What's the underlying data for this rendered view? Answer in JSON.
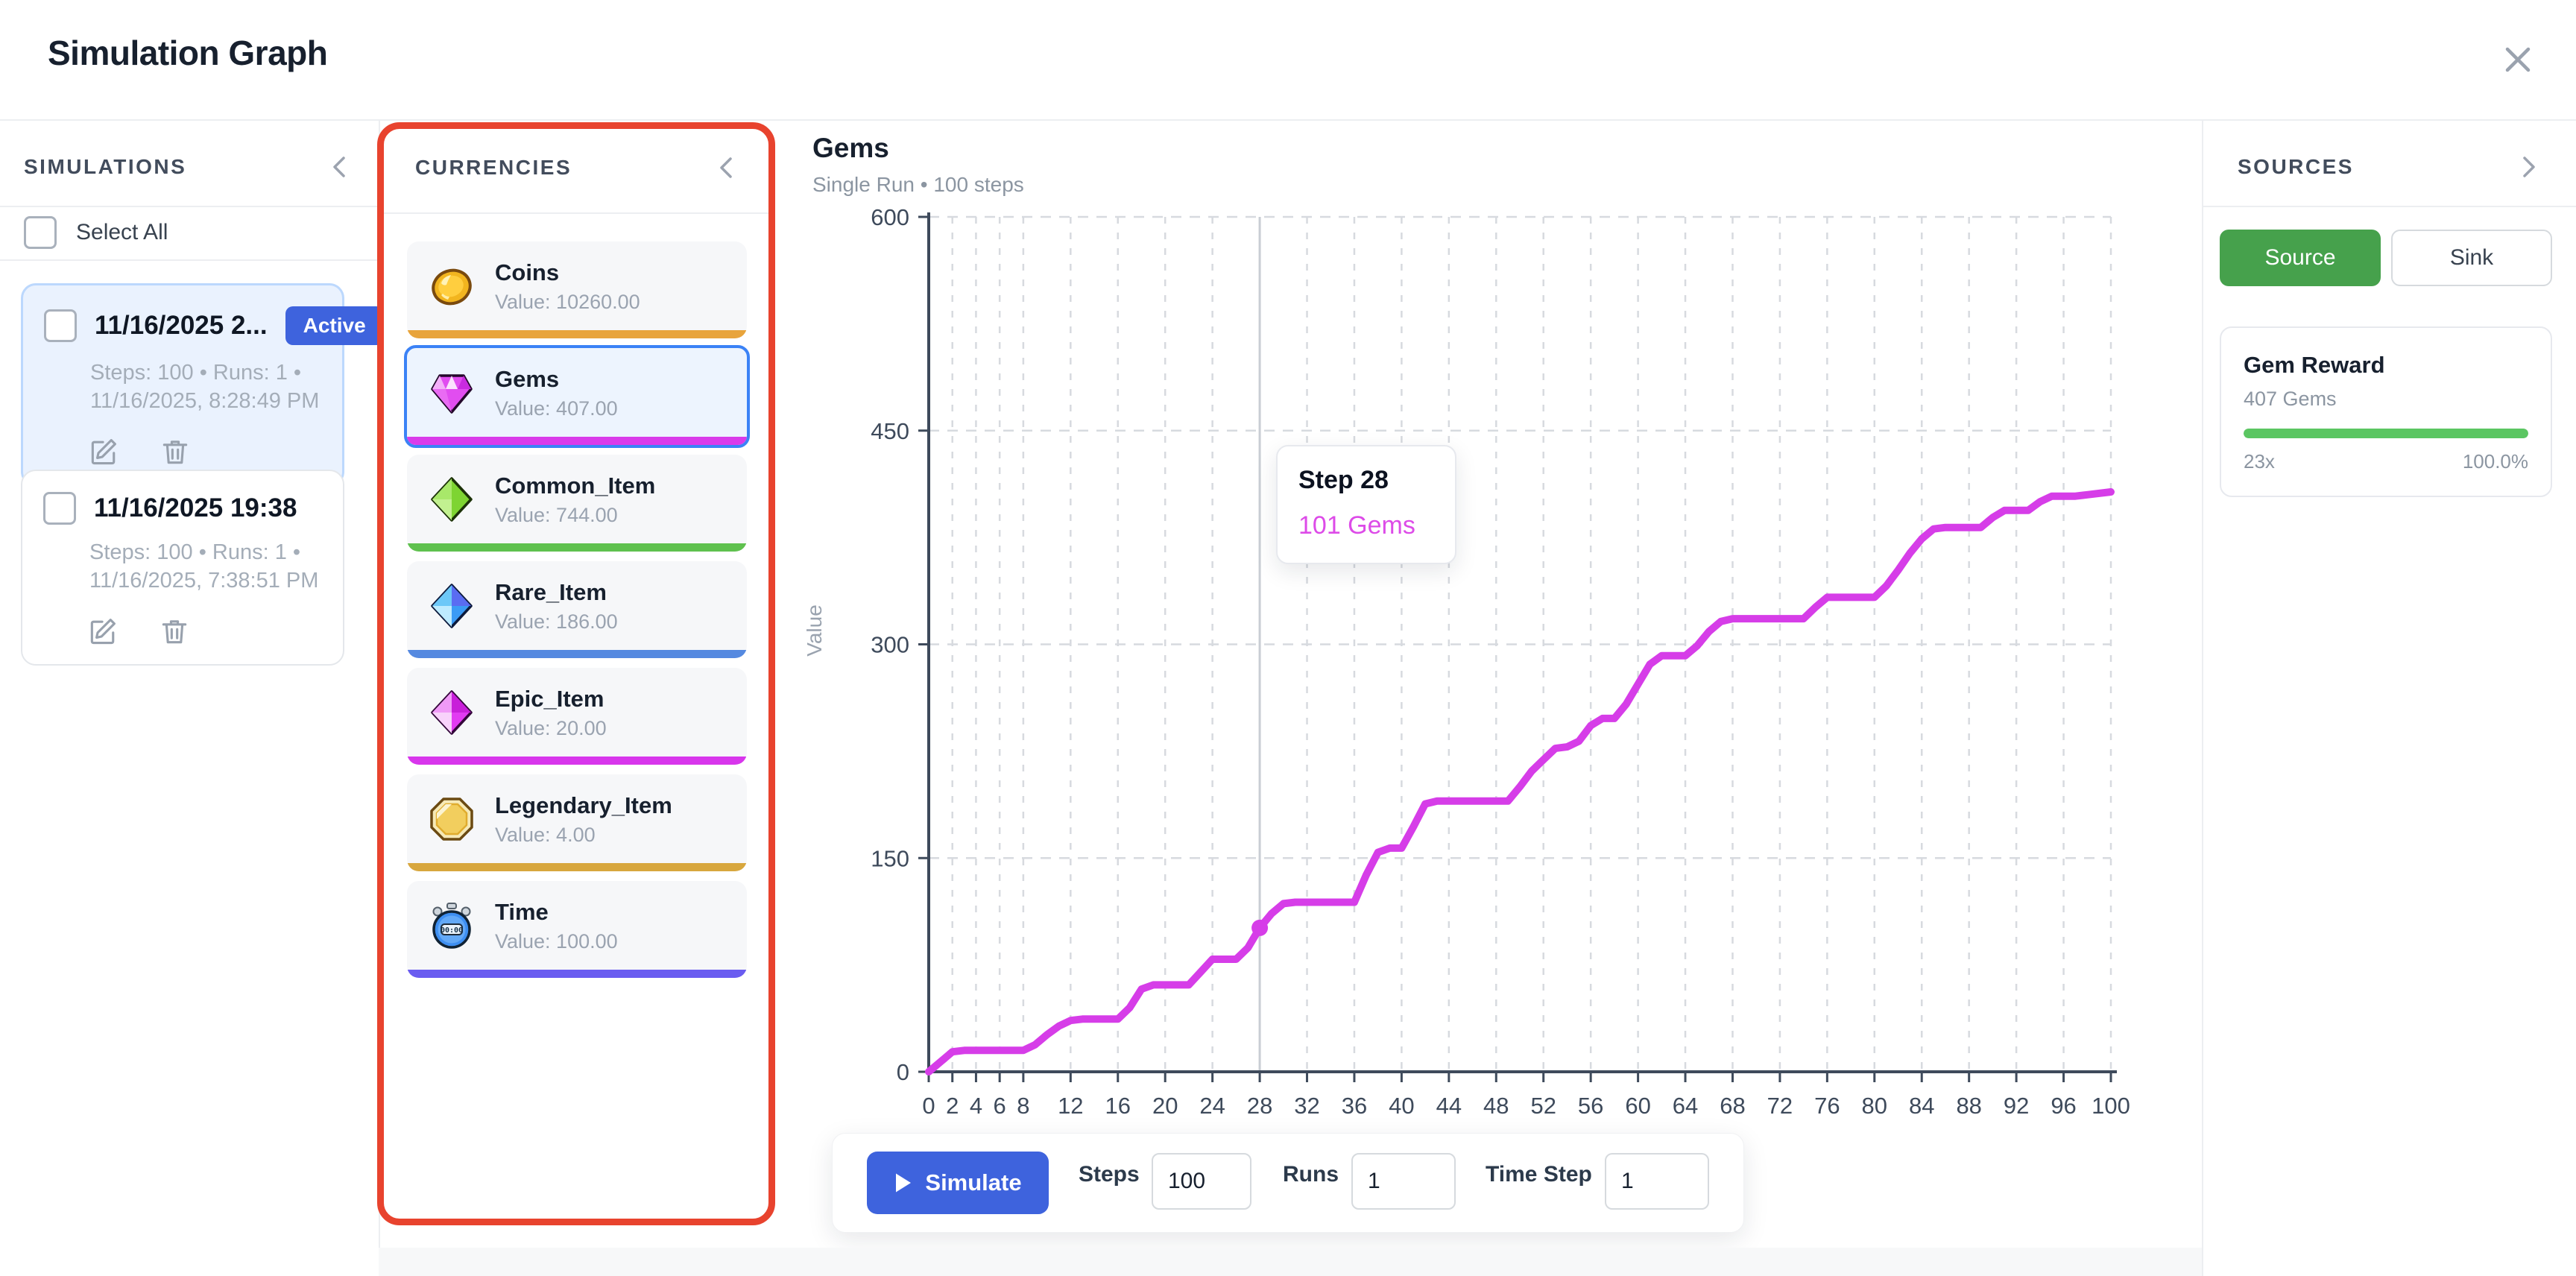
{
  "header": {
    "title": "Simulation Graph"
  },
  "simulations": {
    "title": "SIMULATIONS",
    "select_all_label": "Select All",
    "items": [
      {
        "title": "11/16/2025 2...",
        "badge": "Active",
        "meta1": "Steps: 100 • Runs: 1 •",
        "meta2": "11/16/2025, 8:28:49 PM"
      },
      {
        "title": "11/16/2025 19:38",
        "meta1": "Steps: 100 • Runs: 1 •",
        "meta2": "11/16/2025, 7:38:51 PM"
      }
    ]
  },
  "currencies": {
    "title": "CURRENCIES",
    "highlight_color": "#E8432E",
    "items": [
      {
        "name": "Coins",
        "value": "Value: 10260.00",
        "bar_color": "#E8A43C",
        "icon": "coin-icon",
        "selected": false
      },
      {
        "name": "Gems",
        "value": "Value: 407.00",
        "bar_color": "#D93BEA",
        "icon": "gem-pink-icon",
        "selected": true
      },
      {
        "name": "Common_Item",
        "value": "Value: 744.00",
        "bar_color": "#5FC14E",
        "icon": "diamond-green-icon",
        "selected": false
      },
      {
        "name": "Rare_Item",
        "value": "Value: 186.00",
        "bar_color": "#5589E0",
        "icon": "diamond-blue-icon",
        "selected": false
      },
      {
        "name": "Epic_Item",
        "value": "Value: 20.00",
        "bar_color": "#D836EC",
        "icon": "diamond-magenta-icon",
        "selected": false
      },
      {
        "name": "Legendary_Item",
        "value": "Value: 4.00",
        "bar_color": "#D8A73E",
        "icon": "octagon-gold-icon",
        "selected": false
      },
      {
        "name": "Time",
        "value": "Value: 100.00",
        "bar_color": "#6A5CF0",
        "icon": "stopwatch-icon",
        "icon_text": "00:00",
        "selected": false
      }
    ]
  },
  "chart": {
    "title": "Gems",
    "subtitle": "Single Run • 100 steps",
    "tooltip": {
      "title": "Step 28",
      "value": "101 Gems"
    }
  },
  "chart_data": {
    "type": "line",
    "title": "Gems",
    "xlabel": "",
    "ylabel": "Value",
    "xlim": [
      0,
      100
    ],
    "ylim": [
      0,
      600
    ],
    "x_ticks": [
      0,
      2,
      4,
      6,
      8,
      12,
      16,
      20,
      24,
      28,
      32,
      36,
      40,
      44,
      48,
      52,
      56,
      60,
      64,
      68,
      72,
      76,
      80,
      84,
      88,
      92,
      96,
      100
    ],
    "y_ticks": [
      0,
      150,
      300,
      450,
      600
    ],
    "grid": true,
    "legend": "none",
    "crosshair_x": 28,
    "marker": {
      "x": 28,
      "y": 101
    },
    "series": [
      {
        "name": "Gems",
        "color": "#D63DE8",
        "points": [
          [
            0,
            0
          ],
          [
            1,
            7
          ],
          [
            2,
            14
          ],
          [
            3,
            15
          ],
          [
            8,
            15
          ],
          [
            9,
            19
          ],
          [
            10,
            26
          ],
          [
            11,
            32
          ],
          [
            12,
            36
          ],
          [
            13,
            37
          ],
          [
            16,
            37
          ],
          [
            17,
            45
          ],
          [
            18,
            58
          ],
          [
            19,
            61
          ],
          [
            22,
            61
          ],
          [
            23,
            70
          ],
          [
            24,
            79
          ],
          [
            26,
            79
          ],
          [
            27,
            87
          ],
          [
            28,
            101
          ],
          [
            29,
            111
          ],
          [
            30,
            118
          ],
          [
            31,
            119
          ],
          [
            36,
            119
          ],
          [
            37,
            138
          ],
          [
            38,
            154
          ],
          [
            39,
            157
          ],
          [
            40,
            157
          ],
          [
            41,
            172
          ],
          [
            42,
            188
          ],
          [
            43,
            190
          ],
          [
            49,
            190
          ],
          [
            50,
            200
          ],
          [
            51,
            211
          ],
          [
            52,
            219
          ],
          [
            53,
            227
          ],
          [
            54,
            228
          ],
          [
            55,
            232
          ],
          [
            56,
            243
          ],
          [
            57,
            248
          ],
          [
            58,
            248
          ],
          [
            59,
            258
          ],
          [
            60,
            272
          ],
          [
            61,
            286
          ],
          [
            62,
            292
          ],
          [
            64,
            292
          ],
          [
            65,
            299
          ],
          [
            66,
            309
          ],
          [
            67,
            316
          ],
          [
            68,
            318
          ],
          [
            74,
            318
          ],
          [
            75,
            326
          ],
          [
            76,
            333
          ],
          [
            80,
            333
          ],
          [
            81,
            341
          ],
          [
            82,
            352
          ],
          [
            83,
            364
          ],
          [
            84,
            374
          ],
          [
            85,
            381
          ],
          [
            86,
            382
          ],
          [
            89,
            382
          ],
          [
            90,
            389
          ],
          [
            91,
            394
          ],
          [
            93,
            394
          ],
          [
            94,
            400
          ],
          [
            95,
            404
          ],
          [
            97,
            404
          ],
          [
            98,
            405
          ],
          [
            100,
            407
          ]
        ]
      }
    ]
  },
  "controls": {
    "simulate_label": "Simulate",
    "steps_label": "Steps",
    "steps_value": "100",
    "runs_label": "Runs",
    "runs_value": "1",
    "time_step_label": "Time Step",
    "time_step_value": "1"
  },
  "sources": {
    "title": "SOURCES",
    "tabs": [
      {
        "label": "Source",
        "active": true
      },
      {
        "label": "Sink",
        "active": false
      }
    ],
    "items": [
      {
        "name": "Gem Reward",
        "amount": "407 Gems",
        "multiplier": "23x",
        "percent": "100.0%",
        "progress_percent": "100%",
        "bar_color": "#5BC662"
      }
    ]
  }
}
